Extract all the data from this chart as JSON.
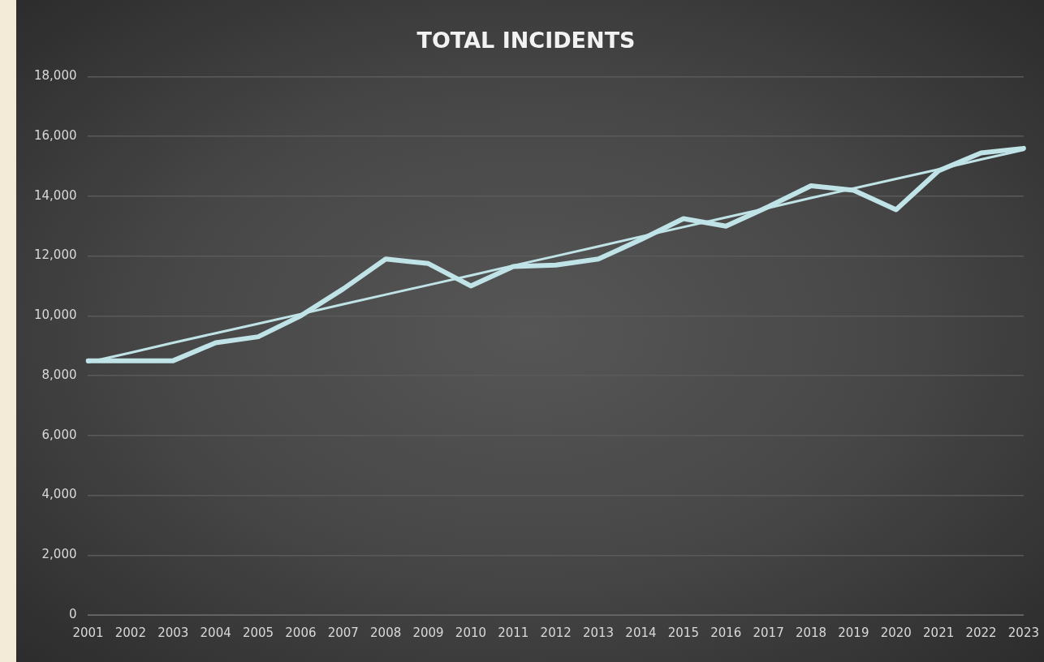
{
  "chart_data": {
    "type": "line",
    "title": "TOTAL INCIDENTS",
    "categories": [
      "2001",
      "2002",
      "2003",
      "2004",
      "2005",
      "2006",
      "2007",
      "2008",
      "2009",
      "2010",
      "2011",
      "2012",
      "2013",
      "2014",
      "2015",
      "2016",
      "2017",
      "2018",
      "2019",
      "2020",
      "2021",
      "2022",
      "2023"
    ],
    "series": [
      {
        "color": "#bfe3e6",
        "values": [
          8500,
          8500,
          8500,
          9100,
          9300,
          10000,
          10900,
          11900,
          11750,
          11000,
          11650,
          11700,
          11900,
          12550,
          13250,
          13000,
          13650,
          14350,
          14200,
          13550,
          14850,
          15450,
          15600
        ]
      },
      {
        "type": "line",
        "color": "#bfe3e6",
        "values": [
          8450,
          8770,
          9100,
          9420,
          9740,
          10060,
          10390,
          10710,
          11030,
          11350,
          11680,
          12000,
          12320,
          12650,
          12970,
          13290,
          13610,
          13940,
          14260,
          14580,
          14900,
          15230,
          15550
        ]
      }
    ],
    "ylim": [
      0,
      18000
    ],
    "yticks": [
      0,
      {
        "value": 2000,
        "label": "2,000"
      },
      {
        "value": 4000,
        "label": "4,000"
      },
      {
        "value": 6000,
        "label": "6,000"
      },
      {
        "value": 8000,
        "label": "8,000"
      },
      {
        "value": 10000,
        "label": "10,000"
      },
      {
        "value": 12000,
        "label": "12,000"
      },
      {
        "value": 14000,
        "label": "14,000"
      },
      {
        "value": 16000,
        "label": "16,000"
      },
      {
        "value": 18000,
        "label": "18,000"
      }
    ],
    "grid": "y",
    "legend": false,
    "marker": "none"
  }
}
